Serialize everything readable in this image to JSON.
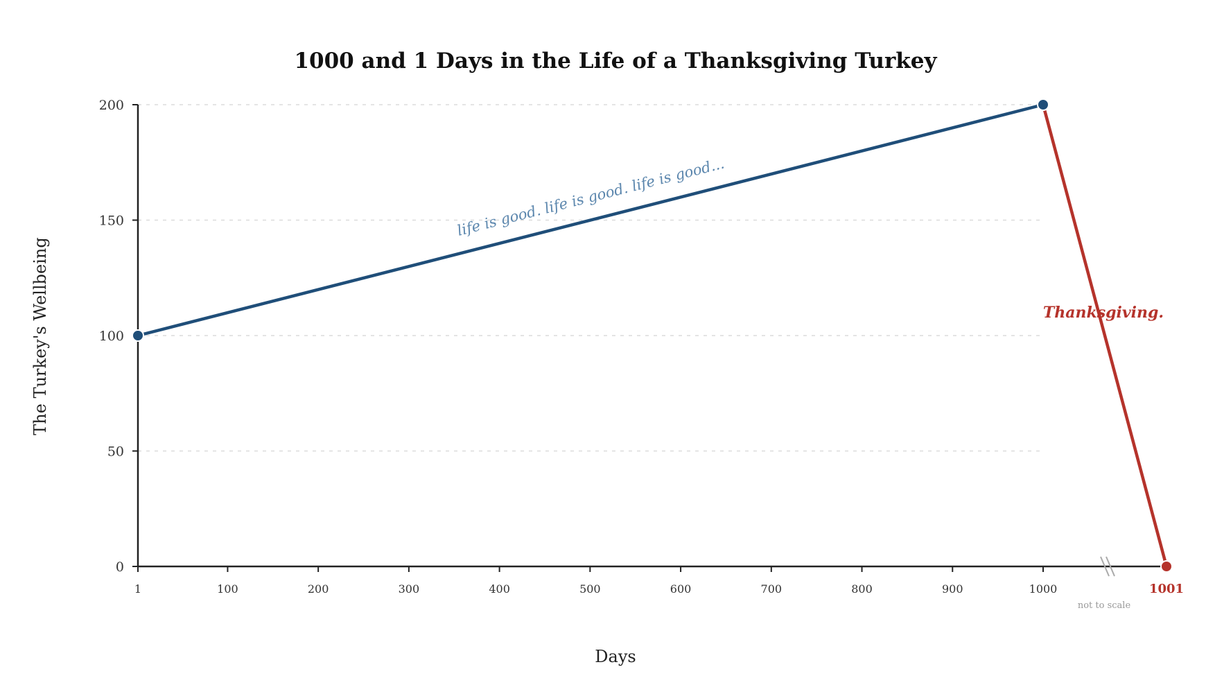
{
  "chart_data": {
    "type": "line",
    "title": "1000 and 1 Days in the Life of a Thanksgiving Turkey",
    "xlabel": "Days",
    "ylabel": "The Turkey's Wellbeing",
    "ylim": [
      0,
      200
    ],
    "y_ticks": [
      0,
      50,
      100,
      150,
      200
    ],
    "x_ticks": [
      "1",
      "100",
      "200",
      "300",
      "400",
      "500",
      "600",
      "700",
      "800",
      "900",
      "1000"
    ],
    "x_final_tick": "1001",
    "grid": true,
    "axis_break_note": "not to scale",
    "series": [
      {
        "points": [
          {
            "x": 1,
            "y": 100
          },
          {
            "x": 1000,
            "y": 200
          }
        ],
        "color": "#1f4e79"
      },
      {
        "points": [
          {
            "x": 1000,
            "y": 200
          },
          {
            "x": 1001,
            "y": 0
          }
        ],
        "color": "#b5332b"
      }
    ],
    "annotations": [
      {
        "text": "life is good. life is good. life is good...",
        "color": "#5b86ad"
      },
      {
        "text": "Thanksgiving.",
        "color": "#b5332b"
      }
    ]
  }
}
